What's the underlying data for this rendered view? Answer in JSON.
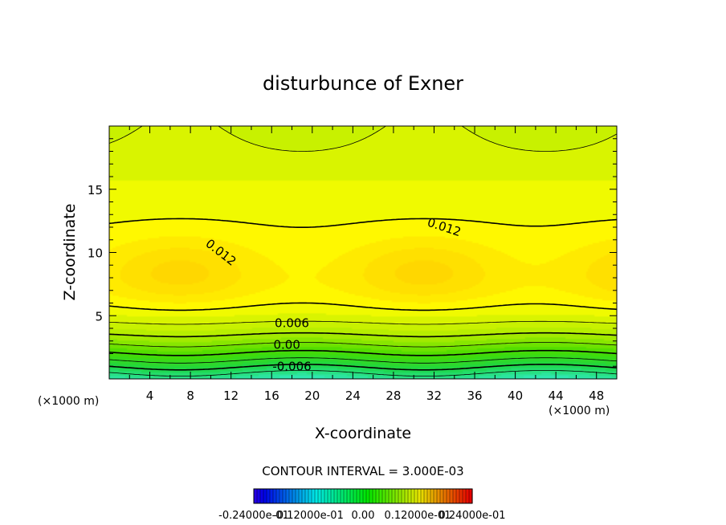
{
  "chart_data": {
    "type": "heatmap",
    "title": "disturbunce of Exner",
    "xlabel": "X-coordinate",
    "ylabel": "Z-coordinate",
    "x_unit_label": "(×1000 m)",
    "y_unit_label": "(×1000 m)",
    "xlim": [
      0,
      50
    ],
    "ylim": [
      0,
      20
    ],
    "x_ticks": [
      4,
      8,
      12,
      16,
      20,
      24,
      28,
      32,
      36,
      40,
      44,
      48
    ],
    "y_ticks": [
      5,
      10,
      15
    ],
    "contour_interval_text": "CONTOUR INTERVAL = 3.000E-03",
    "contour_labels": [
      {
        "text": "0.012",
        "x": 11.0,
        "z": 10.0,
        "angle": 38
      },
      {
        "text": "0.012",
        "x": 33.0,
        "z": 12.0,
        "angle": 18
      },
      {
        "text": "0.006",
        "x": 18.0,
        "z": 4.4,
        "angle": 0
      },
      {
        "text": "0.00",
        "x": 17.5,
        "z": 2.7,
        "angle": 0
      },
      {
        "text": "-0.006",
        "x": 18.0,
        "z": 1.0,
        "angle": 0
      }
    ],
    "colorbar_labels": [
      "-0.24000e-01",
      "-0.12000e-01",
      "0.00",
      "0.12000e-01",
      "0.24000e-01"
    ],
    "colorbar_range": [
      -0.024,
      0.024
    ],
    "fill_colors": {
      "min": "#2fe8b0",
      "low": "#22d830",
      "zero": "#55e000",
      "mid": "#c8f000",
      "high": "#ffff00",
      "max": "#ffd800"
    }
  }
}
